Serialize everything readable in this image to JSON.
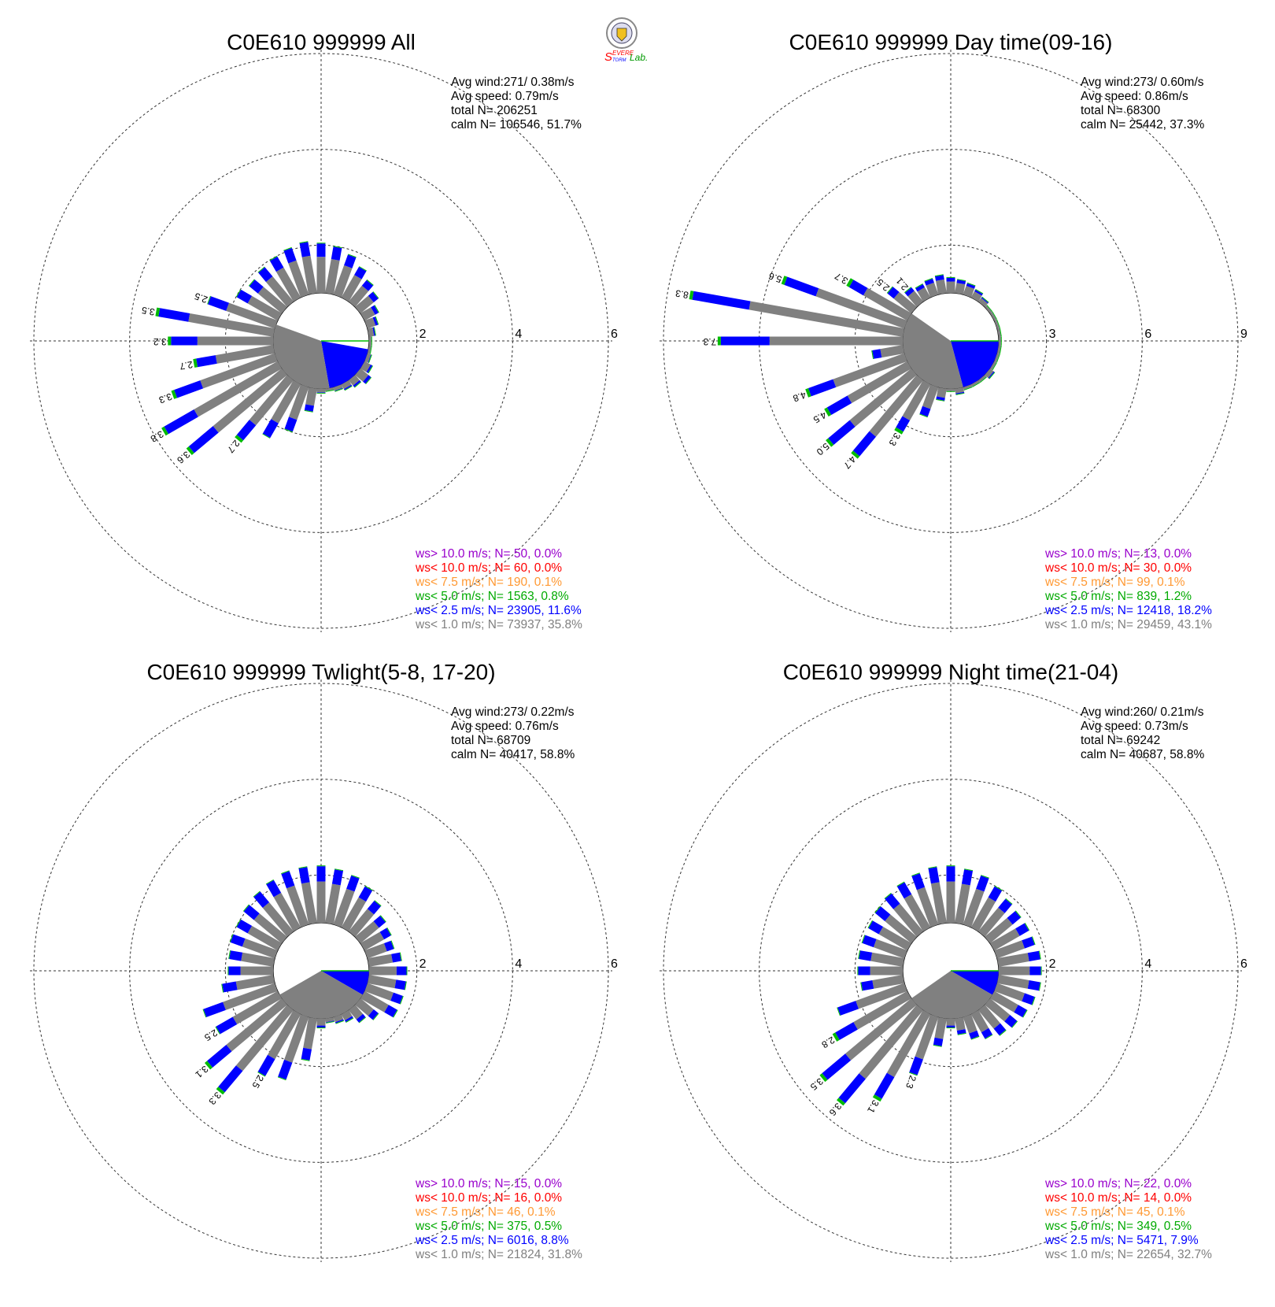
{
  "logo": {
    "text_s1": "S",
    "text_evere": "EVERE",
    "text_torm": "TORM",
    "text_lab": "Lab."
  },
  "chart_data": [
    {
      "type": "wind-rose",
      "title": "C0E610 999999 All",
      "info": [
        "Avg wind:271/ 0.38m/s",
        "Avg speed: 0.79m/s",
        "total N=      206251",
        "calm N= 106546,  51.7%"
      ],
      "rings": [
        2,
        4,
        6
      ],
      "ring_max": 6,
      "calm_radius": 1.0,
      "calm_wedges": [
        {
          "from": 100,
          "to": 170,
          "color": "#0000ff",
          "r": 1.0
        },
        {
          "from": 170,
          "to": 290,
          "color": "#808080",
          "r": 1.0
        }
      ],
      "petals": [
        {
          "dir": 0,
          "total": 2.05
        },
        {
          "dir": 10,
          "total": 2.0
        },
        {
          "dir": 20,
          "total": 1.9
        },
        {
          "dir": 30,
          "total": 1.75
        },
        {
          "dir": 40,
          "total": 1.6
        },
        {
          "dir": 50,
          "total": 1.5
        },
        {
          "dir": 60,
          "total": 1.35
        },
        {
          "dir": 70,
          "total": 1.25
        },
        {
          "dir": 80,
          "total": 1.15
        },
        {
          "dir": 90,
          "total": 1.05
        },
        {
          "dir": 100,
          "total": 1.05
        },
        {
          "dir": 110,
          "total": 1.1
        },
        {
          "dir": 120,
          "total": 1.2
        },
        {
          "dir": 130,
          "total": 1.3
        },
        {
          "dir": 140,
          "total": 1.2
        },
        {
          "dir": 150,
          "total": 1.15
        },
        {
          "dir": 160,
          "total": 1.1
        },
        {
          "dir": 170,
          "total": 1.05
        },
        {
          "dir": 180,
          "total": 1.1
        },
        {
          "dir": 190,
          "total": 1.5
        },
        {
          "dir": 200,
          "total": 2.0
        },
        {
          "dir": 210,
          "total": 2.3
        },
        {
          "dir": 220,
          "total": 2.7,
          "label": "2.7"
        },
        {
          "dir": 230,
          "total": 3.6,
          "label": "3.6"
        },
        {
          "dir": 240,
          "total": 3.8,
          "label": "3.8"
        },
        {
          "dir": 250,
          "total": 3.3,
          "label": "3.3"
        },
        {
          "dir": 260,
          "total": 2.7,
          "label": "2.7"
        },
        {
          "dir": 270,
          "total": 3.2,
          "label": "3.2"
        },
        {
          "dir": 280,
          "total": 3.5,
          "label": "3.5"
        },
        {
          "dir": 290,
          "total": 2.5,
          "label": "2.5"
        },
        {
          "dir": 300,
          "total": 2.0
        },
        {
          "dir": 310,
          "total": 1.9
        },
        {
          "dir": 320,
          "total": 1.95
        },
        {
          "dir": 330,
          "total": 2.0
        },
        {
          "dir": 340,
          "total": 2.05
        },
        {
          "dir": 350,
          "total": 2.1
        }
      ],
      "legend": [
        {
          "text": "ws> 10.0 m/s; N=    50,  0.0%",
          "color": "#9900cc"
        },
        {
          "text": "ws< 10.0 m/s; N=    60,  0.0%",
          "color": "#ff0000"
        },
        {
          "text": "ws<  7.5 m/s; N=   190,  0.1%",
          "color": "#ff9933"
        },
        {
          "text": "ws<  5.0 m/s; N=  1563,  0.8%",
          "color": "#00aa00"
        },
        {
          "text": "ws<  2.5 m/s; N= 23905, 11.6%",
          "color": "#0000ff"
        },
        {
          "text": "ws<  1.0 m/s; N= 73937, 35.8%",
          "color": "#808080"
        }
      ]
    },
    {
      "type": "wind-rose",
      "title": "C0E610 999999 Day time(09-16)",
      "info": [
        "Avg wind:273/ 0.60m/s",
        "Avg speed: 0.86m/s",
        "total N=       68300",
        "calm N=  25442,  37.3%"
      ],
      "rings": [
        3,
        6,
        9
      ],
      "ring_max": 9,
      "calm_radius": 1.5,
      "calm_wedges": [
        {
          "from": 90,
          "to": 165,
          "color": "#0000ff",
          "r": 1.5
        },
        {
          "from": 165,
          "to": 305,
          "color": "#808080",
          "r": 1.5
        }
      ],
      "petals": [
        {
          "dir": 0,
          "total": 2.0
        },
        {
          "dir": 10,
          "total": 1.95
        },
        {
          "dir": 20,
          "total": 1.9
        },
        {
          "dir": 30,
          "total": 1.8
        },
        {
          "dir": 40,
          "total": 1.7
        },
        {
          "dir": 50,
          "total": 1.6
        },
        {
          "dir": 60,
          "total": 1.6
        },
        {
          "dir": 70,
          "total": 1.55
        },
        {
          "dir": 80,
          "total": 1.55
        },
        {
          "dir": 90,
          "total": 1.5
        },
        {
          "dir": 100,
          "total": 1.5
        },
        {
          "dir": 110,
          "total": 1.5
        },
        {
          "dir": 120,
          "total": 1.6
        },
        {
          "dir": 130,
          "total": 1.7
        },
        {
          "dir": 140,
          "total": 1.6
        },
        {
          "dir": 150,
          "total": 1.5
        },
        {
          "dir": 160,
          "total": 1.6
        },
        {
          "dir": 170,
          "total": 1.7
        },
        {
          "dir": 180,
          "total": 1.5
        },
        {
          "dir": 190,
          "total": 1.9
        },
        {
          "dir": 200,
          "total": 2.5
        },
        {
          "dir": 210,
          "total": 3.3,
          "label": "3.3"
        },
        {
          "dir": 220,
          "total": 4.7,
          "label": "4.7"
        },
        {
          "dir": 230,
          "total": 5.0,
          "label": "5.0"
        },
        {
          "dir": 240,
          "total": 4.5,
          "label": "4.5"
        },
        {
          "dir": 250,
          "total": 4.8,
          "label": "4.8"
        },
        {
          "dir": 260,
          "total": 2.5
        },
        {
          "dir": 270,
          "total": 7.3,
          "label": "7.3"
        },
        {
          "dir": 280,
          "total": 8.3,
          "label": "8.3"
        },
        {
          "dir": 290,
          "total": 5.6,
          "label": "5.6"
        },
        {
          "dir": 300,
          "total": 3.7,
          "label": "3.7"
        },
        {
          "dir": 310,
          "total": 2.5,
          "label": "2.5"
        },
        {
          "dir": 320,
          "total": 2.1,
          "label": "2.1"
        },
        {
          "dir": 330,
          "total": 2.0
        },
        {
          "dir": 340,
          "total": 2.05
        },
        {
          "dir": 350,
          "total": 2.1
        }
      ],
      "legend": [
        {
          "text": "ws> 10.0 m/s; N=    13,  0.0%",
          "color": "#9900cc"
        },
        {
          "text": "ws< 10.0 m/s; N=    30,  0.0%",
          "color": "#ff0000"
        },
        {
          "text": "ws<  7.5 m/s; N=    99,  0.1%",
          "color": "#ff9933"
        },
        {
          "text": "ws<  5.0 m/s; N=   839,  1.2%",
          "color": "#00aa00"
        },
        {
          "text": "ws<  2.5 m/s; N= 12418, 18.2%",
          "color": "#0000ff"
        },
        {
          "text": "ws<  1.0 m/s; N= 29459, 43.1%",
          "color": "#808080"
        }
      ]
    },
    {
      "type": "wind-rose",
      "title": "C0E610 999999 Twlight(5-8, 17-20)",
      "info": [
        "Avg wind:273/ 0.22m/s",
        "Avg speed: 0.76m/s",
        "total N=       68709",
        "calm N=  40417,  58.8%"
      ],
      "rings": [
        2,
        4,
        6
      ],
      "ring_max": 6,
      "calm_radius": 1.0,
      "calm_wedges": [
        {
          "from": 90,
          "to": 120,
          "color": "#0000ff",
          "r": 1.0
        },
        {
          "from": 120,
          "to": 240,
          "color": "#808080",
          "r": 1.0
        }
      ],
      "petals": [
        {
          "dir": 0,
          "total": 2.2
        },
        {
          "dir": 10,
          "total": 2.15
        },
        {
          "dir": 20,
          "total": 2.1
        },
        {
          "dir": 30,
          "total": 2.0
        },
        {
          "dir": 40,
          "total": 1.85
        },
        {
          "dir": 50,
          "total": 1.7
        },
        {
          "dir": 60,
          "total": 1.65
        },
        {
          "dir": 70,
          "total": 1.6
        },
        {
          "dir": 80,
          "total": 1.7
        },
        {
          "dir": 90,
          "total": 1.8
        },
        {
          "dir": 100,
          "total": 1.8
        },
        {
          "dir": 110,
          "total": 1.8
        },
        {
          "dir": 120,
          "total": 1.8
        },
        {
          "dir": 130,
          "total": 1.5
        },
        {
          "dir": 140,
          "total": 1.35
        },
        {
          "dir": 150,
          "total": 1.2
        },
        {
          "dir": 160,
          "total": 1.15
        },
        {
          "dir": 170,
          "total": 1.1
        },
        {
          "dir": 180,
          "total": 1.2
        },
        {
          "dir": 190,
          "total": 1.9
        },
        {
          "dir": 200,
          "total": 2.4
        },
        {
          "dir": 210,
          "total": 2.5,
          "label": "2.5"
        },
        {
          "dir": 220,
          "total": 3.3,
          "label": "3.3"
        },
        {
          "dir": 230,
          "total": 3.1,
          "label": "3.1"
        },
        {
          "dir": 240,
          "total": 2.5,
          "label": "2.5"
        },
        {
          "dir": 250,
          "total": 2.6
        },
        {
          "dir": 260,
          "total": 2.1
        },
        {
          "dir": 270,
          "total": 1.95
        },
        {
          "dir": 280,
          "total": 1.95
        },
        {
          "dir": 290,
          "total": 2.0
        },
        {
          "dir": 300,
          "total": 2.0
        },
        {
          "dir": 310,
          "total": 2.05
        },
        {
          "dir": 320,
          "total": 2.1
        },
        {
          "dir": 330,
          "total": 2.15
        },
        {
          "dir": 340,
          "total": 2.2
        },
        {
          "dir": 350,
          "total": 2.2
        }
      ],
      "legend": [
        {
          "text": "ws> 10.0 m/s; N=    15,  0.0%",
          "color": "#9900cc"
        },
        {
          "text": "ws< 10.0 m/s; N=    16,  0.0%",
          "color": "#ff0000"
        },
        {
          "text": "ws<  7.5 m/s; N=    46,  0.1%",
          "color": "#ff9933"
        },
        {
          "text": "ws<  5.0 m/s; N=   375,  0.5%",
          "color": "#00aa00"
        },
        {
          "text": "ws<  2.5 m/s; N=  6016,  8.8%",
          "color": "#0000ff"
        },
        {
          "text": "ws<  1.0 m/s; N= 21824, 31.8%",
          "color": "#808080"
        }
      ]
    },
    {
      "type": "wind-rose",
      "title": "C0E610 999999 Night time(21-04)",
      "info": [
        "Avg wind:260/ 0.21m/s",
        "Avg speed: 0.73m/s",
        "total N=       69242",
        "calm N=  40687,  58.8%"
      ],
      "rings": [
        2,
        4,
        6
      ],
      "ring_max": 6,
      "calm_radius": 1.0,
      "calm_wedges": [
        {
          "from": 90,
          "to": 120,
          "color": "#0000ff",
          "r": 1.0
        },
        {
          "from": 120,
          "to": 235,
          "color": "#808080",
          "r": 1.0
        }
      ],
      "petals": [
        {
          "dir": 0,
          "total": 2.2
        },
        {
          "dir": 10,
          "total": 2.15
        },
        {
          "dir": 20,
          "total": 2.1
        },
        {
          "dir": 30,
          "total": 2.0
        },
        {
          "dir": 40,
          "total": 1.9
        },
        {
          "dir": 50,
          "total": 1.85
        },
        {
          "dir": 60,
          "total": 1.85
        },
        {
          "dir": 70,
          "total": 1.85
        },
        {
          "dir": 80,
          "total": 1.9
        },
        {
          "dir": 90,
          "total": 1.9
        },
        {
          "dir": 100,
          "total": 1.9
        },
        {
          "dir": 110,
          "total": 1.85
        },
        {
          "dir": 120,
          "total": 1.8
        },
        {
          "dir": 130,
          "total": 1.75
        },
        {
          "dir": 140,
          "total": 1.7
        },
        {
          "dir": 150,
          "total": 1.6
        },
        {
          "dir": 160,
          "total": 1.5
        },
        {
          "dir": 170,
          "total": 1.35
        },
        {
          "dir": 180,
          "total": 1.2
        },
        {
          "dir": 190,
          "total": 1.6
        },
        {
          "dir": 200,
          "total": 2.3,
          "label": "2.3"
        },
        {
          "dir": 210,
          "total": 3.1,
          "label": "3.1"
        },
        {
          "dir": 220,
          "total": 3.6,
          "label": "3.6"
        },
        {
          "dir": 230,
          "total": 3.5,
          "label": "3.5"
        },
        {
          "dir": 240,
          "total": 2.8,
          "label": "2.8"
        },
        {
          "dir": 250,
          "total": 2.5
        },
        {
          "dir": 260,
          "total": 1.9
        },
        {
          "dir": 270,
          "total": 1.95
        },
        {
          "dir": 280,
          "total": 1.95
        },
        {
          "dir": 290,
          "total": 1.95
        },
        {
          "dir": 300,
          "total": 1.95
        },
        {
          "dir": 310,
          "total": 2.0
        },
        {
          "dir": 320,
          "total": 2.05
        },
        {
          "dir": 330,
          "total": 2.1
        },
        {
          "dir": 340,
          "total": 2.15
        },
        {
          "dir": 350,
          "total": 2.2
        }
      ],
      "legend": [
        {
          "text": "ws> 10.0 m/s; N=    22,  0.0%",
          "color": "#9900cc"
        },
        {
          "text": "ws< 10.0 m/s; N=    14,  0.0%",
          "color": "#ff0000"
        },
        {
          "text": "ws<  7.5 m/s; N=    45,  0.1%",
          "color": "#ff9933"
        },
        {
          "text": "ws<  5.0 m/s; N=   349,  0.5%",
          "color": "#00aa00"
        },
        {
          "text": "ws<  2.5 m/s; N=  5471,  7.9%",
          "color": "#0000ff"
        },
        {
          "text": "ws<  1.0 m/s; N= 22654, 32.7%",
          "color": "#808080"
        }
      ]
    }
  ]
}
